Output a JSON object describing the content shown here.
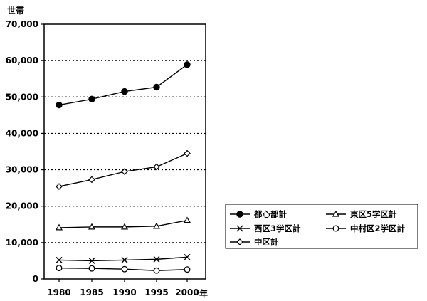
{
  "chart_data": {
    "type": "line",
    "ylabel": "世帯",
    "xlabel": "年",
    "x": [
      1980,
      1985,
      1990,
      1995,
      2000
    ],
    "ylim": [
      0,
      70000
    ],
    "yticks": [
      "0",
      "10,000",
      "20,000",
      "30,000",
      "40,000",
      "50,000",
      "60,000",
      "70,000"
    ],
    "xticks": [
      "1980",
      "1985",
      "1990",
      "1995",
      "2000"
    ],
    "grid": "horizontal dotted",
    "legend_position": "right",
    "series": [
      {
        "name": "都心部計",
        "marker": "filled-circle",
        "values": [
          47800,
          49400,
          51500,
          52700,
          58900
        ]
      },
      {
        "name": "東区5学区計",
        "marker": "triangle",
        "values": [
          14100,
          14300,
          14300,
          14500,
          16100
        ]
      },
      {
        "name": "西区3学区計",
        "marker": "x",
        "values": [
          5200,
          5000,
          5200,
          5400,
          6000
        ]
      },
      {
        "name": "中村区2学区計",
        "marker": "open-circle",
        "values": [
          3000,
          2900,
          2700,
          2300,
          2600
        ]
      },
      {
        "name": "中区計",
        "marker": "diamond",
        "values": [
          25400,
          27300,
          29500,
          30800,
          34500
        ]
      }
    ]
  }
}
